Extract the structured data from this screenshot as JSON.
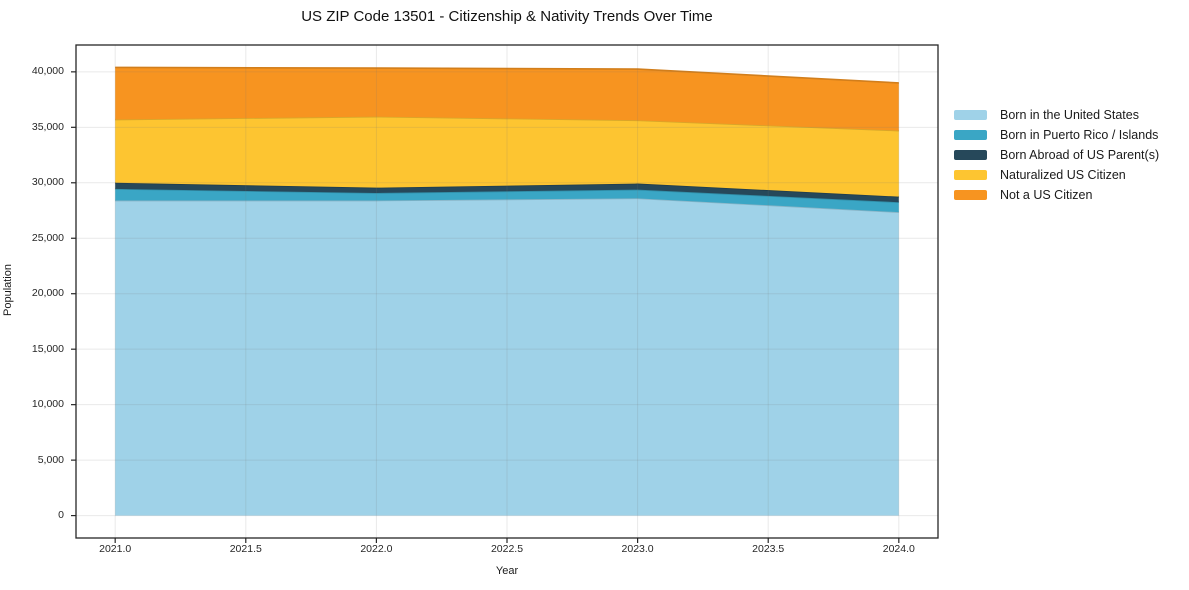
{
  "title": "US ZIP Code 13501 - Citizenship & Nativity Trends Over Time",
  "chart_data": {
    "type": "area",
    "stacked": true,
    "title": "US ZIP Code 13501 - Citizenship & Nativity Trends Over Time",
    "xlabel": "Year",
    "ylabel": "Population",
    "x": [
      2021,
      2022,
      2023,
      2024
    ],
    "series": [
      {
        "name": "Born in the United States",
        "values": [
          28400,
          28400,
          28600,
          27350
        ],
        "color": "#9fd2e8"
      },
      {
        "name": "Born in Puerto Rico / Islands",
        "values": [
          1050,
          680,
          780,
          900
        ],
        "color": "#3aa6c5"
      },
      {
        "name": "Born Abroad of US Parent(s)",
        "values": [
          550,
          480,
          550,
          500
        ],
        "color": "#26485a"
      },
      {
        "name": "Naturalized US Citizen",
        "values": [
          5700,
          6400,
          5700,
          5950
        ],
        "color": "#fdc531"
      },
      {
        "name": "Not a US Citizen",
        "values": [
          4700,
          4380,
          4620,
          4300
        ],
        "color": "#f79420"
      }
    ],
    "totals": [
      40400,
      40340,
      40250,
      39000
    ],
    "xlim": [
      2020.85,
      2024.15
    ],
    "ylim": [
      -2020,
      42420
    ],
    "x_ticks": {
      "values": [
        2021,
        2021.5,
        2022,
        2022.5,
        2023,
        2023.5,
        2024
      ],
      "labels": [
        "2021.0",
        "2021.5",
        "2022.0",
        "2022.5",
        "2023.0",
        "2023.5",
        "2024.0"
      ]
    },
    "y_ticks": {
      "values": [
        0,
        5000,
        10000,
        15000,
        20000,
        25000,
        30000,
        35000,
        40000
      ],
      "labels": [
        "0",
        "5,000",
        "10,000",
        "15,000",
        "20,000",
        "25,000",
        "30,000",
        "35,000",
        "40,000"
      ]
    },
    "grid": true,
    "legend_position": "right",
    "spine_color": "#262626",
    "grid_color": "rgba(120,120,120,0.16)"
  }
}
